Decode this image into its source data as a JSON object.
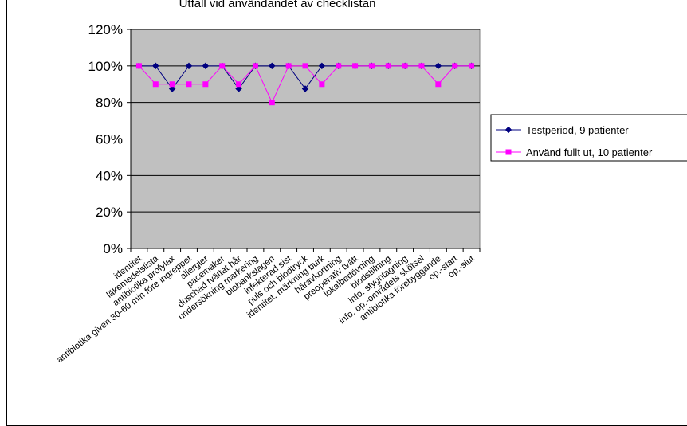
{
  "chart_data": {
    "type": "line",
    "title": "Utfall vid användandet av checklistan",
    "ylim": [
      0,
      1.2
    ],
    "yticks": [
      "0%",
      "20%",
      "40%",
      "60%",
      "80%",
      "100%",
      "120%"
    ],
    "ytick_values": [
      0,
      0.2,
      0.4,
      0.6,
      0.8,
      1.0,
      1.2
    ],
    "grid": true,
    "legend_position": "right",
    "plot_background": "#c0c0c0",
    "categories": [
      "identitet",
      "läkemedelslista",
      "antibiotika profylax",
      "antibiotika given 30-60 min före ingreppet",
      "allergier",
      "pacemaker",
      "duschad tvättat hår",
      "undersökning markering",
      "biobankslagen",
      "infekterad sist",
      "puls och blodtryck",
      "identitet, märkning burk",
      "häravkortning",
      "preoperativ tvätt",
      "lokalbedövning",
      "blodstillning",
      "info. stygntagning",
      "info. op.-områdets skötsel",
      "antibiotika förebyggande",
      "op.-start",
      "op.-slut"
    ],
    "series": [
      {
        "name": "Testperiod, 9 patienter",
        "color": "#000080",
        "marker": "diamond",
        "values": [
          1.0,
          1.0,
          0.875,
          1.0,
          1.0,
          1.0,
          0.875,
          1.0,
          1.0,
          1.0,
          0.875,
          1.0,
          1.0,
          1.0,
          1.0,
          1.0,
          1.0,
          1.0,
          1.0,
          1.0,
          1.0
        ]
      },
      {
        "name": "Använd fullt ut, 10 patienter",
        "color": "#ff00ff",
        "marker": "square",
        "values": [
          1.0,
          0.9,
          0.9,
          0.9,
          0.9,
          1.0,
          0.9,
          1.0,
          0.8,
          1.0,
          1.0,
          0.9,
          1.0,
          1.0,
          1.0,
          1.0,
          1.0,
          1.0,
          0.9,
          1.0,
          1.0
        ]
      }
    ]
  }
}
